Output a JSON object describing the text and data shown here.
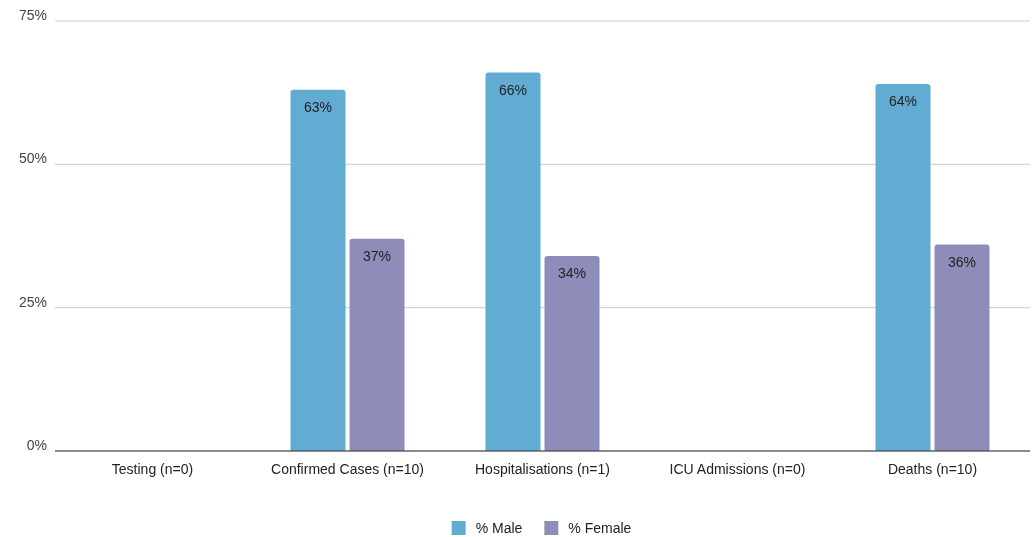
{
  "chart_data": {
    "type": "bar",
    "categories": [
      "Testing (n=0)",
      "Confirmed Cases (n=10)",
      "Hospitalisations (n=1)",
      "ICU Admissions (n=0)",
      "Deaths (n=10)"
    ],
    "series": [
      {
        "name": "% Male",
        "color": "#62acd4",
        "values": [
          null,
          63,
          66,
          null,
          64
        ],
        "value_labels": [
          null,
          "63%",
          "66%",
          null,
          "64%"
        ]
      },
      {
        "name": "% Female",
        "color": "#8e8cb8",
        "values": [
          null,
          37,
          34,
          null,
          36
        ],
        "value_labels": [
          null,
          "37%",
          "34%",
          null,
          "36%"
        ]
      }
    ],
    "ylim": [
      0,
      75
    ],
    "yticks": [
      {
        "value": 0,
        "label": "0%"
      },
      {
        "value": 25,
        "label": "25%"
      },
      {
        "value": 50,
        "label": "50%"
      },
      {
        "value": 75,
        "label": "75%"
      }
    ],
    "grid": "y",
    "legend": "bottom"
  }
}
